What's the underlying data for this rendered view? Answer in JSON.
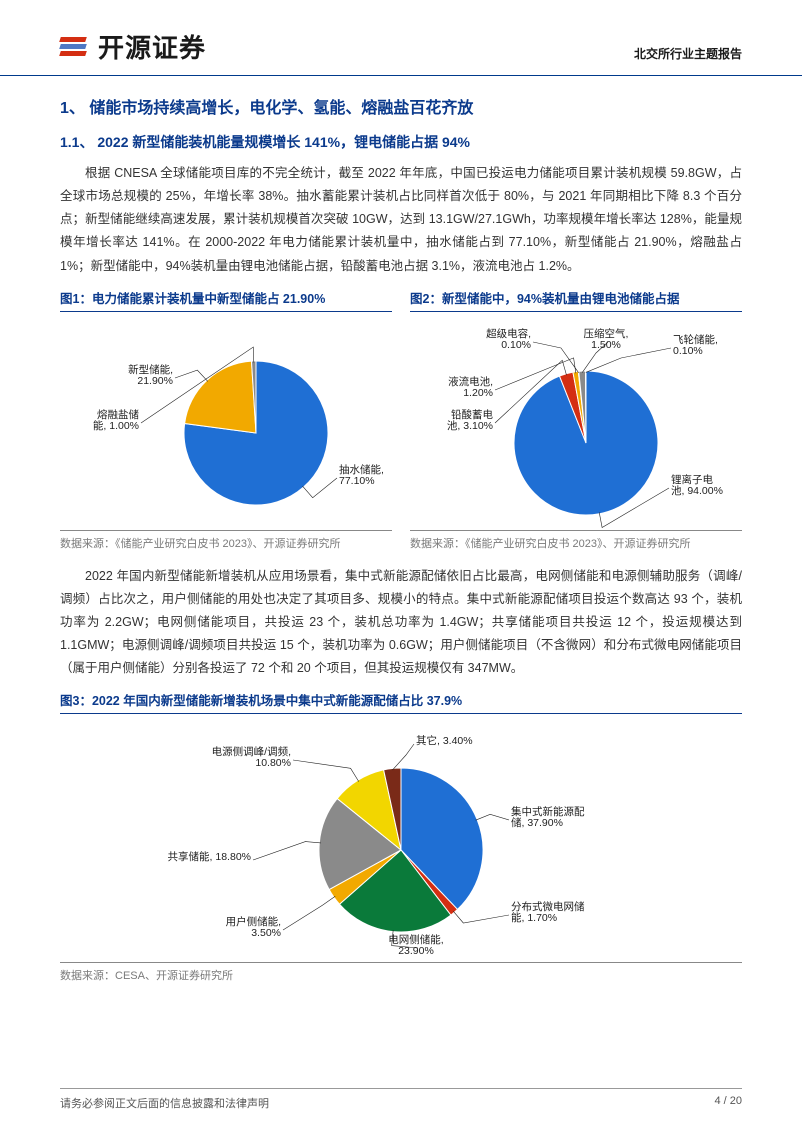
{
  "header": {
    "company_name": "开源证券",
    "doc_type": "北交所行业主题报告",
    "logo_colors": [
      "#d42e12",
      "#4f78c4",
      "#d42e12"
    ]
  },
  "section1": {
    "title": "1、 储能市场持续高增长，电化学、氢能、熔融盐百花齐放",
    "sub_title": "1.1、 2022 新型储能装机能量规模增长 141%，锂电储能占据 94%",
    "para1": "根据 CNESA 全球储能项目库的不完全统计，截至 2022 年年底，中国已投运电力储能项目累计装机规模 59.8GW，占全球市场总规模的 25%，年增长率 38%。抽水蓄能累计装机占比同样首次低于 80%，与 2021 年同期相比下降 8.3 个百分点；新型储能继续高速发展，累计装机规模首次突破 10GW，达到 13.1GW/27.1GWh，功率规模年增长率达 128%，能量规模年增长率达 141%。在 2000-2022 年电力储能累计装机量中，抽水储能占到 77.10%，新型储能占 21.90%，熔融盐占 1%；新型储能中，94%装机量由锂电池储能占据，铅酸蓄电池占据 3.1%，液流电池占 1.2%。"
  },
  "chart1": {
    "title": "图1：电力储能累计装机量中新型储能占 21.90%",
    "type": "pie",
    "slices": [
      {
        "name": "抽水储能",
        "value": 77.1,
        "label": "抽水储能,\n77.10%",
        "color": "#1f6fd4"
      },
      {
        "name": "新型储能",
        "value": 21.9,
        "label": "新型储能,\n21.90%",
        "color": "#f2a900"
      },
      {
        "name": "熔融盐储能",
        "value": 1.0,
        "label": "熔融盐储\n能, 1.00%",
        "color": "#8a8a8a"
      }
    ],
    "source": "数据来源：《储能产业研究白皮书 2023》、开源证券研究所"
  },
  "chart2": {
    "title": "图2：新型储能中，94%装机量由锂电池储能占据",
    "type": "pie",
    "slices": [
      {
        "name": "锂离子电池",
        "value": 94.0,
        "label": "锂离子电\n池, 94.00%",
        "color": "#1f6fd4"
      },
      {
        "name": "铅酸蓄电池",
        "value": 3.1,
        "label": "铅酸蓄电\n池, 3.10%",
        "color": "#d42e12"
      },
      {
        "name": "液流电池",
        "value": 1.2,
        "label": "液流电池,\n1.20%",
        "color": "#f2a900"
      },
      {
        "name": "超级电容",
        "value": 0.1,
        "label": "超级电容,\n0.10%",
        "color": "#0a7a3a"
      },
      {
        "name": "压缩空气",
        "value": 1.5,
        "label": "压缩空气,\n1.50%",
        "color": "#8a8a8a"
      },
      {
        "name": "飞轮储能",
        "value": 0.1,
        "label": "飞轮储能,\n0.10%",
        "color": "#173a7a"
      }
    ],
    "source": "数据来源：《储能产业研究白皮书 2023》、开源证券研究所"
  },
  "section2": {
    "para": "2022 年国内新型储能新增装机从应用场景看，集中式新能源配储依旧占比最高，电网侧储能和电源侧辅助服务（调峰/调频）占比次之，用户侧储能的用处也决定了其项目多、规模小的特点。集中式新能源配储项目投运个数高达 93 个，装机功率为 2.2GW；电网侧储能项目，共投运 23 个，装机总功率为 1.4GW；共享储能项目共投运 12 个，投运规模达到 1.1GMW；电源侧调峰/调频项目共投运 15 个，装机功率为 0.6GW；用户侧储能项目（不含微网）和分布式微电网储能项目（属于用户侧储能）分别各投运了 72 个和 20 个项目，但其投运规模仅有 347MW。"
  },
  "chart3": {
    "title": "图3：2022 年国内新型储能新增装机场景中集中式新能源配储占比 37.9%",
    "type": "pie",
    "slices": [
      {
        "name": "集中式新能源配储",
        "value": 37.9,
        "label": "集中式新能源配\n储, 37.90%",
        "color": "#1f6fd4"
      },
      {
        "name": "分布式微电网储能",
        "value": 1.7,
        "label": "分布式微电网储\n能, 1.70%",
        "color": "#d42e12"
      },
      {
        "name": "电网侧储能",
        "value": 23.9,
        "label": "电网侧储能,\n23.90%",
        "color": "#0a7a3a"
      },
      {
        "name": "用户侧储能",
        "value": 3.5,
        "label": "用户侧储能,\n3.50%",
        "color": "#f2a900"
      },
      {
        "name": "共享储能",
        "value": 18.8,
        "label": "共享储能, 18.80%",
        "color": "#8a8a8a"
      },
      {
        "name": "电源侧调峰/调频",
        "value": 10.8,
        "label": "电源侧调峰/调频,\n10.80%",
        "color": "#f2d600"
      },
      {
        "name": "其它",
        "value": 3.4,
        "label": "其它, 3.40%",
        "color": "#7a2a18"
      }
    ],
    "source": "数据来源：CESA、开源证券研究所"
  },
  "footer": {
    "disclaimer": "请务必参阅正文后面的信息披露和法律声明",
    "page": "4 / 20"
  },
  "colors": {
    "heading": "#0b3a8c",
    "text": "#333333",
    "source_text": "#7a7a7a"
  }
}
